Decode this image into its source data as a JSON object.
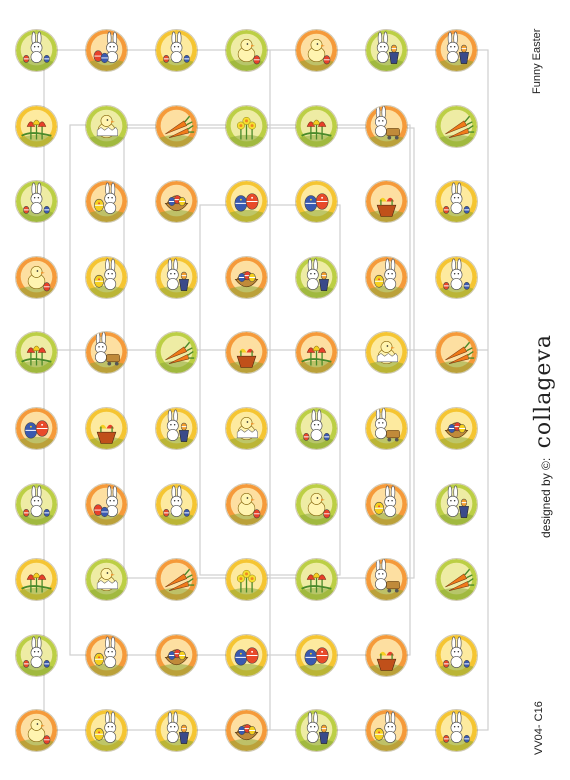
{
  "sheet": {
    "title": "Funny Easter",
    "credit_prefix": "designed by ©:",
    "brand": "collageva",
    "code": "VV04- C16",
    "columns": 7,
    "rows": 10
  },
  "palette": {
    "orange": "#f59a3a",
    "yellow": "#f5c532",
    "green": "#bccf45",
    "sky": "#fff6c4",
    "grass": "#8aa83a"
  },
  "motifs": [
    "bunny-basket",
    "bunny-eggs",
    "bunny-dancing",
    "chick",
    "chick",
    "bunny-bucket",
    "bunny-bucket",
    "tulips",
    "chick-egg",
    "carrots",
    "daffodils",
    "tulips",
    "bunny-wagon",
    "carrots",
    "bunny-sitting",
    "bunny-egg",
    "egg-basket",
    "painted-eggs",
    "painted-eggs",
    "flower-pot",
    "bunny-sitting",
    "chick",
    "bunny-egg",
    "bunny-bucket",
    "egg-basket",
    "bunny-bucket",
    "bunny-egg",
    "bunny-dancing",
    "tulips",
    "bunny-wagon",
    "carrots",
    "flower-pot",
    "tulips",
    "chick-egg",
    "carrots",
    "painted-eggs",
    "flower-pot",
    "bunny-bucket",
    "chick-egg",
    "bunny-sitting",
    "bunny-wagon",
    "egg-basket",
    "bunny-basket",
    "bunny-eggs",
    "bunny-dancing",
    "chick",
    "chick",
    "bunny-egg",
    "bunny-bucket",
    "tulips",
    "chick-egg",
    "carrots",
    "daffodils",
    "tulips",
    "bunny-wagon",
    "carrots",
    "bunny-sitting",
    "bunny-egg",
    "egg-basket",
    "painted-eggs",
    "painted-eggs",
    "flower-pot",
    "bunny-sitting",
    "chick",
    "bunny-egg",
    "bunny-bucket",
    "egg-basket",
    "bunny-bucket",
    "bunny-egg",
    "bunny-dancing"
  ],
  "backgrounds": [
    "green",
    "orange",
    "yellow",
    "green",
    "orange",
    "green",
    "orange",
    "yellow",
    "green",
    "orange",
    "green",
    "green",
    "orange",
    "green",
    "green",
    "orange",
    "orange",
    "yellow",
    "yellow",
    "orange",
    "yellow",
    "orange",
    "yellow",
    "yellow",
    "orange",
    "green",
    "orange",
    "yellow",
    "green",
    "orange",
    "green",
    "orange",
    "orange",
    "yellow",
    "orange",
    "orange",
    "yellow",
    "yellow",
    "yellow",
    "green",
    "yellow",
    "yellow",
    "green",
    "orange",
    "yellow",
    "orange",
    "green",
    "orange",
    "green",
    "yellow",
    "green",
    "orange",
    "yellow",
    "green",
    "orange",
    "green",
    "green",
    "orange",
    "orange",
    "yellow",
    "yellow",
    "orange",
    "yellow",
    "orange",
    "yellow",
    "yellow",
    "orange",
    "green",
    "orange",
    "yellow"
  ]
}
